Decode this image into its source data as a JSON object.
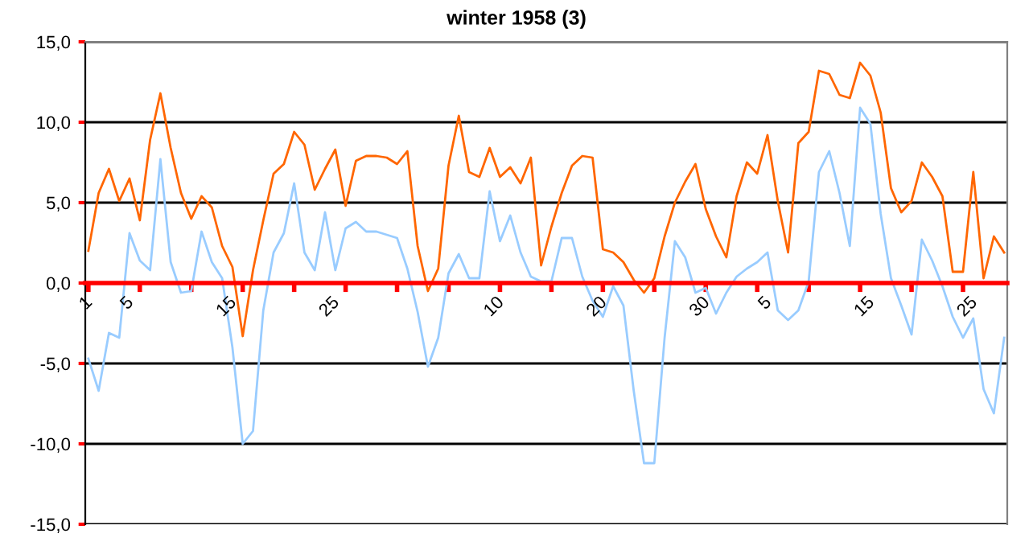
{
  "chart_data": {
    "type": "line",
    "title": "winter 1958 (3)",
    "categories": [
      "1",
      null,
      null,
      null,
      "5",
      null,
      null,
      null,
      null,
      null,
      null,
      null,
      null,
      null,
      "15",
      null,
      null,
      null,
      null,
      null,
      null,
      null,
      null,
      null,
      "25",
      null,
      null,
      null,
      null,
      null,
      null,
      null,
      null,
      null,
      null,
      null,
      null,
      null,
      null,
      null,
      "10",
      null,
      null,
      null,
      null,
      null,
      null,
      null,
      null,
      null,
      "20",
      null,
      null,
      null,
      null,
      null,
      null,
      null,
      null,
      null,
      "30",
      null,
      null,
      null,
      null,
      null,
      "5",
      null,
      null,
      null,
      null,
      null,
      null,
      null,
      null,
      null,
      "15",
      null,
      null,
      null,
      null,
      null,
      null,
      null,
      null,
      null,
      "25",
      null,
      null,
      null
    ],
    "series": [
      {
        "color": "#ff6600",
        "values": [
          2.0,
          5.6,
          7.1,
          5.1,
          6.5,
          3.9,
          8.9,
          11.8,
          8.4,
          5.6,
          4.0,
          5.4,
          4.7,
          2.3,
          1.0,
          -3.3,
          0.8,
          3.9,
          6.8,
          7.4,
          9.4,
          8.6,
          5.8,
          7.1,
          8.3,
          4.8,
          7.6,
          7.9,
          7.9,
          7.8,
          7.4,
          8.2,
          2.3,
          -0.5,
          0.9,
          7.3,
          10.4,
          6.9,
          6.6,
          8.4,
          6.6,
          7.2,
          6.2,
          7.8,
          1.1,
          3.5,
          5.6,
          7.3,
          7.9,
          7.8,
          2.1,
          1.9,
          1.3,
          0.2,
          -0.6,
          0.3,
          2.9,
          5.0,
          6.3,
          7.4,
          4.6,
          2.9,
          1.6,
          5.4,
          7.5,
          6.8,
          9.2,
          5.1,
          1.9,
          8.7,
          9.4,
          13.2,
          13.0,
          11.7,
          11.5,
          13.7,
          12.9,
          10.6,
          5.9,
          4.4,
          5.1,
          7.5,
          6.6,
          5.4,
          0.7,
          0.7,
          6.9,
          0.3,
          2.9,
          1.9
        ]
      },
      {
        "color": "#99ccff",
        "values": [
          -4.7,
          -6.7,
          -3.1,
          -3.4,
          3.1,
          1.4,
          0.8,
          7.7,
          1.3,
          -0.6,
          -0.5,
          3.2,
          1.3,
          0.3,
          -4.0,
          -10.0,
          -9.2,
          -1.7,
          1.9,
          3.1,
          6.2,
          1.9,
          0.8,
          4.4,
          0.8,
          3.4,
          3.8,
          3.2,
          3.2,
          3.0,
          2.8,
          0.9,
          -1.8,
          -5.2,
          -3.4,
          0.6,
          1.8,
          0.3,
          0.3,
          5.7,
          2.6,
          4.2,
          1.9,
          0.4,
          0.1,
          0.1,
          2.8,
          2.8,
          0.4,
          -1.1,
          -2.1,
          -0.2,
          -1.4,
          -6.7,
          -11.2,
          -11.2,
          -3.4,
          2.6,
          1.6,
          -0.6,
          -0.3,
          -1.9,
          -0.6,
          0.4,
          0.9,
          1.3,
          1.9,
          -1.7,
          -2.3,
          -1.7,
          0.1,
          6.9,
          8.2,
          5.6,
          2.3,
          10.9,
          9.9,
          4.3,
          0.3,
          -1.4,
          -3.2,
          2.7,
          1.4,
          -0.2,
          -2.1,
          -3.4,
          -2.2,
          -6.6,
          -8.1,
          -3.4
        ]
      }
    ],
    "ylim": [
      -15,
      15
    ],
    "yticks": [
      {
        "value": -15,
        "label": "-15,0"
      },
      {
        "value": -10,
        "label": "-10,0"
      },
      {
        "value": -5,
        "label": "-5,0"
      },
      {
        "value": 0,
        "label": "0,0"
      },
      {
        "value": 5,
        "label": "5,0"
      },
      {
        "value": 10,
        "label": "10,0"
      },
      {
        "value": 15,
        "label": "15,0"
      }
    ],
    "grid": "y",
    "legend": false,
    "marker": "none",
    "line_style": "solid"
  }
}
